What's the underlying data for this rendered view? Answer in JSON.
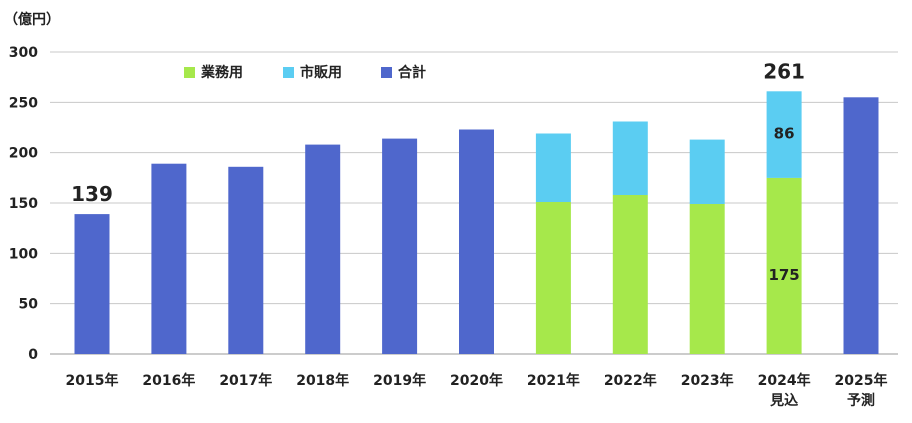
{
  "chart_data": {
    "type": "bar",
    "stacked": true,
    "unit_label": "（億円）",
    "categories": [
      [
        "2015年"
      ],
      [
        "2016年"
      ],
      [
        "2017年"
      ],
      [
        "2018年"
      ],
      [
        "2019年"
      ],
      [
        "2020年"
      ],
      [
        "2021年"
      ],
      [
        "2022年"
      ],
      [
        "2023年"
      ],
      [
        "2024年",
        "見込"
      ],
      [
        "2025年",
        "予測"
      ]
    ],
    "series": [
      {
        "name": "業務用",
        "color": "#a6e84b",
        "values": [
          null,
          null,
          null,
          null,
          null,
          null,
          151,
          158,
          149,
          175,
          null
        ]
      },
      {
        "name": "市販用",
        "color": "#5bcdf2",
        "values": [
          null,
          null,
          null,
          null,
          null,
          null,
          68,
          73,
          64,
          86,
          null
        ]
      },
      {
        "name": "合計",
        "color": "#4f67cc",
        "values": [
          139,
          189,
          186,
          208,
          214,
          223,
          null,
          null,
          null,
          null,
          255
        ]
      }
    ],
    "yticks": [
      "0",
      "50",
      "100",
      "150",
      "200",
      "250",
      "300"
    ],
    "ylim": [
      0,
      300
    ],
    "grid": true,
    "legend_position": "top-left",
    "annotations": [
      {
        "category_index": 0,
        "text": "139",
        "position": "above",
        "style": "big"
      },
      {
        "category_index": 9,
        "text": "261",
        "position": "above",
        "style": "big"
      },
      {
        "category_index": 9,
        "series_index": 1,
        "text": "86",
        "position": "inside",
        "style": "small"
      },
      {
        "category_index": 9,
        "series_index": 0,
        "text": "175",
        "position": "inside",
        "style": "small"
      }
    ]
  }
}
